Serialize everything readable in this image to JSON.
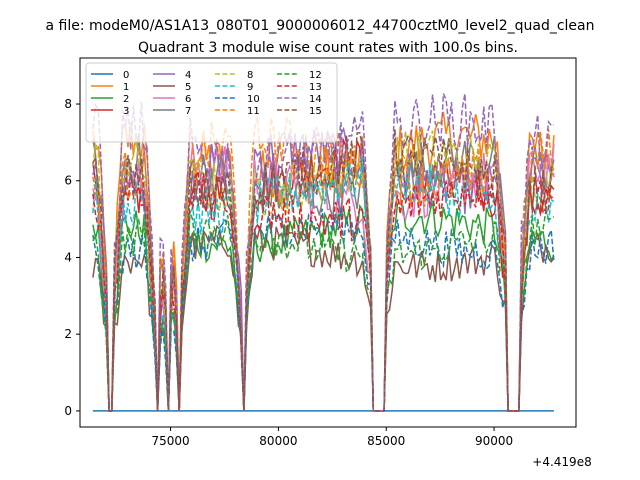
{
  "figure": {
    "suptitle": "a file: modeM0/AS1A13_080T01_9000006012_44700cztM0_level2_quad_clean",
    "title": "Quadrant 3 module wise count rates with 100.0s bins.",
    "offset_label": "+4.419e8"
  },
  "chart_data": {
    "type": "line",
    "title": "Quadrant 3 module wise count rates with 100.0s bins.",
    "xlabel": "",
    "ylabel": "",
    "x_offset": 441900000,
    "xlim": [
      70800,
      93800
    ],
    "ylim": [
      -0.42,
      9.2
    ],
    "xticks": [
      75000,
      80000,
      85000,
      90000
    ],
    "yticks": [
      0,
      2,
      4,
      6,
      8
    ],
    "x_tick_labels": [
      "75000",
      "80000",
      "85000",
      "90000"
    ],
    "y_tick_labels": [
      "0",
      "2",
      "4",
      "6",
      "8"
    ],
    "grid": false,
    "legend_position": "top-left",
    "legend_columns": 4,
    "x_range": [
      71400,
      92800
    ],
    "bin_seconds": 100,
    "series": [
      {
        "name": "0",
        "color": "#1f77b4",
        "dash": "solid",
        "level": 0
      },
      {
        "name": "1",
        "color": "#ff7f0e",
        "dash": "solid",
        "level": 6.6
      },
      {
        "name": "2",
        "color": "#2ca02c",
        "dash": "solid",
        "level": 4.7
      },
      {
        "name": "3",
        "color": "#d62728",
        "dash": "solid",
        "level": 6.0
      },
      {
        "name": "4",
        "color": "#9467bd",
        "dash": "solid",
        "level": 6.3
      },
      {
        "name": "5",
        "color": "#8c564b",
        "dash": "solid",
        "level": 4.1
      },
      {
        "name": "6",
        "color": "#e377c2",
        "dash": "solid",
        "level": 5.9
      },
      {
        "name": "7",
        "color": "#7f7f7f",
        "dash": "solid",
        "level": 6.1
      },
      {
        "name": "8",
        "color": "#bcbd22",
        "dash": "dashed",
        "level": 6.2
      },
      {
        "name": "9",
        "color": "#17becf",
        "dash": "dashed",
        "level": 5.6
      },
      {
        "name": "10",
        "color": "#1f77b4",
        "dash": "dashed",
        "level": 4.5
      },
      {
        "name": "11",
        "color": "#ff7f0e",
        "dash": "dashed",
        "level": 6.5
      },
      {
        "name": "12",
        "color": "#2ca02c",
        "dash": "dashed",
        "level": 4.4
      },
      {
        "name": "13",
        "color": "#d62728",
        "dash": "dashed",
        "level": 5.4
      },
      {
        "name": "14",
        "color": "#9467bd",
        "dash": "dashed",
        "level": 7.0
      },
      {
        "name": "15",
        "color": "#8c564b",
        "dash": "dashed",
        "level": 6.2
      }
    ],
    "dropouts": [
      [
        72100,
        72300
      ],
      [
        74300,
        74400
      ],
      [
        74800,
        74900
      ],
      [
        75300,
        75400
      ],
      [
        78300,
        78400
      ],
      [
        84400,
        84900
      ],
      [
        90600,
        91200
      ]
    ]
  }
}
